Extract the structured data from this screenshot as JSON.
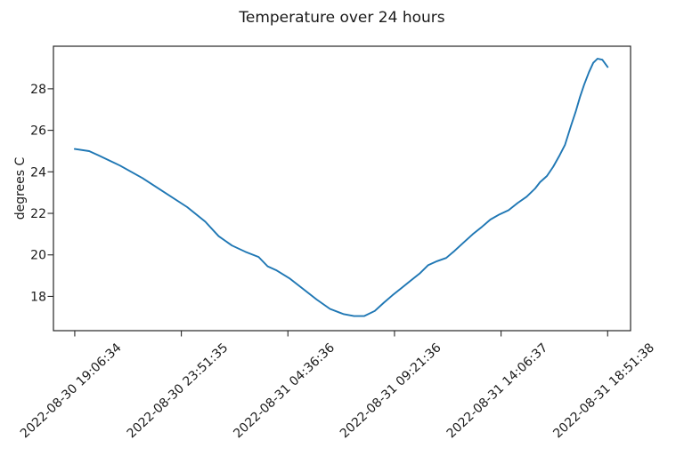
{
  "chart_data": {
    "type": "line",
    "title": "Temperature over 24 hours",
    "xlabel": "",
    "ylabel": "degrees C",
    "grid": false,
    "legend": "none",
    "line_color": "#1f77b4",
    "background_color": "#ffffff",
    "y_ticks": [
      18,
      20,
      22,
      24,
      26,
      28
    ],
    "ylim": [
      16.35,
      30.05
    ],
    "xlim_frac": [
      -0.04,
      1.043
    ],
    "x_tick_rotation_deg": -43,
    "x_tick_labels": [
      "2022-08-30 19:06:34",
      "2022-08-30 23:51:35",
      "2022-08-31 04:36:36",
      "2022-08-31 09:21:36",
      "2022-08-31 14:06:37",
      "2022-08-31 18:51:38"
    ],
    "series": [
      {
        "name": "temperature",
        "color": "#1f77b4",
        "x_frac": [
          0.0,
          0.027,
          0.044,
          0.085,
          0.127,
          0.169,
          0.211,
          0.245,
          0.27,
          0.295,
          0.32,
          0.345,
          0.362,
          0.379,
          0.404,
          0.429,
          0.454,
          0.479,
          0.504,
          0.524,
          0.543,
          0.563,
          0.58,
          0.596,
          0.613,
          0.63,
          0.647,
          0.663,
          0.68,
          0.697,
          0.713,
          0.73,
          0.747,
          0.764,
          0.78,
          0.797,
          0.814,
          0.831,
          0.848,
          0.864,
          0.873,
          0.886,
          0.898,
          0.91,
          0.92,
          0.931,
          0.94,
          0.948,
          0.956,
          0.965,
          0.973,
          0.981,
          0.99,
          1.0
        ],
        "values": [
          25.1,
          25.0,
          24.8,
          24.3,
          23.7,
          23.0,
          22.3,
          21.6,
          20.9,
          20.45,
          20.15,
          19.9,
          19.45,
          19.25,
          18.85,
          18.35,
          17.85,
          17.4,
          17.15,
          17.05,
          17.05,
          17.3,
          17.7,
          18.05,
          18.4,
          18.75,
          19.1,
          19.5,
          19.7,
          19.85,
          20.2,
          20.6,
          21.0,
          21.35,
          21.7,
          21.95,
          22.15,
          22.5,
          22.8,
          23.2,
          23.5,
          23.8,
          24.25,
          24.8,
          25.3,
          26.2,
          26.9,
          27.6,
          28.2,
          28.8,
          29.25,
          29.45,
          29.4,
          29.05
        ]
      }
    ]
  }
}
